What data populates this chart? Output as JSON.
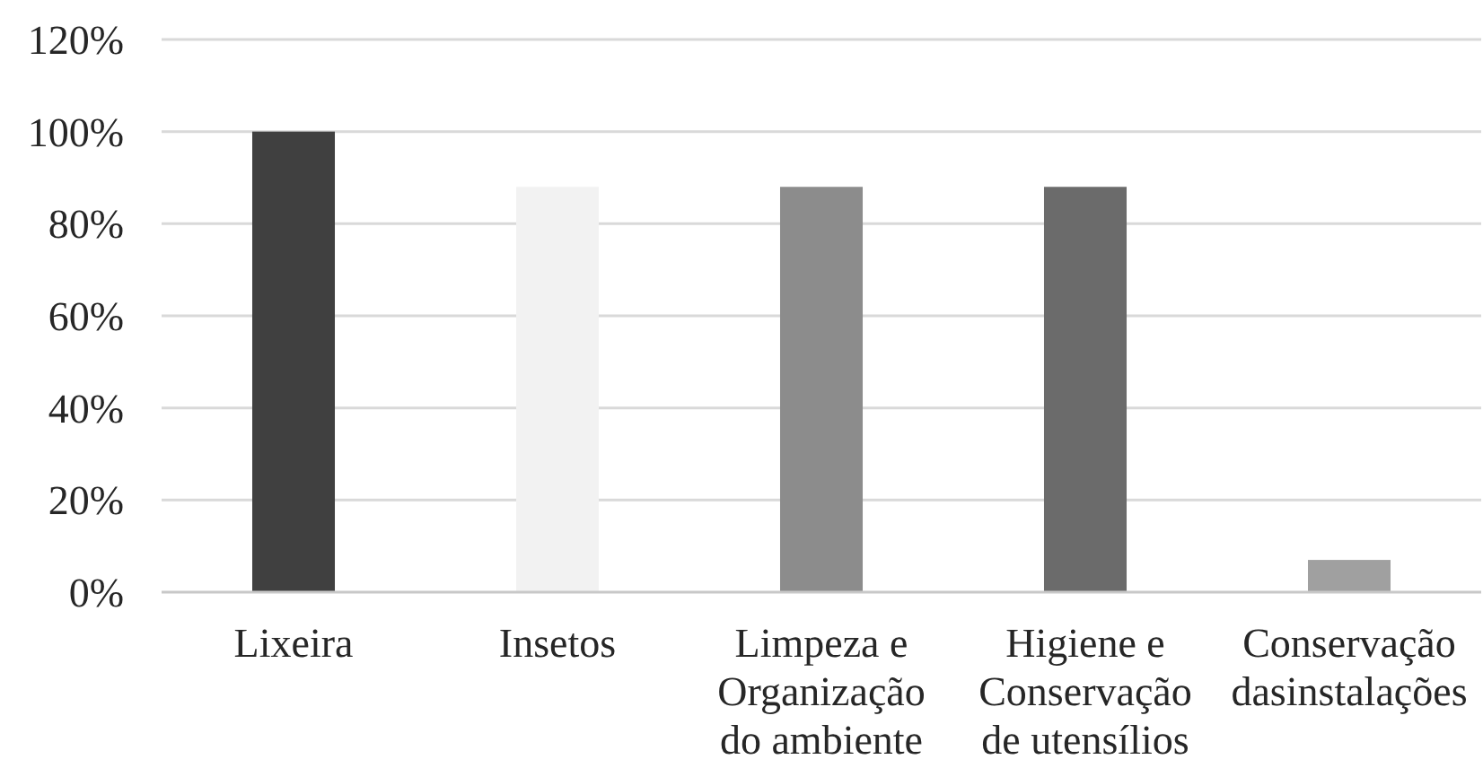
{
  "chart_data": {
    "type": "bar",
    "categories": [
      "Lixeira",
      "Insetos",
      "Limpeza e Organização do ambiente",
      "Higiene e Conservação de utensílios",
      "Conservação dasinstalações"
    ],
    "values": [
      100,
      88,
      88,
      88,
      7
    ],
    "colors": [
      "#404040",
      "#f2f2f2",
      "#8c8c8c",
      "#6b6b6b",
      "#a0a0a0"
    ],
    "ylim": [
      0,
      120
    ],
    "yticks": [
      {
        "value": 0,
        "label": "0%"
      },
      {
        "value": 20,
        "label": "20%"
      },
      {
        "value": 40,
        "label": "40%"
      },
      {
        "value": 60,
        "label": "60%"
      },
      {
        "value": 80,
        "label": "80%"
      },
      {
        "value": 100,
        "label": "100%"
      },
      {
        "value": 120,
        "label": "120%"
      }
    ],
    "grid": "y"
  }
}
